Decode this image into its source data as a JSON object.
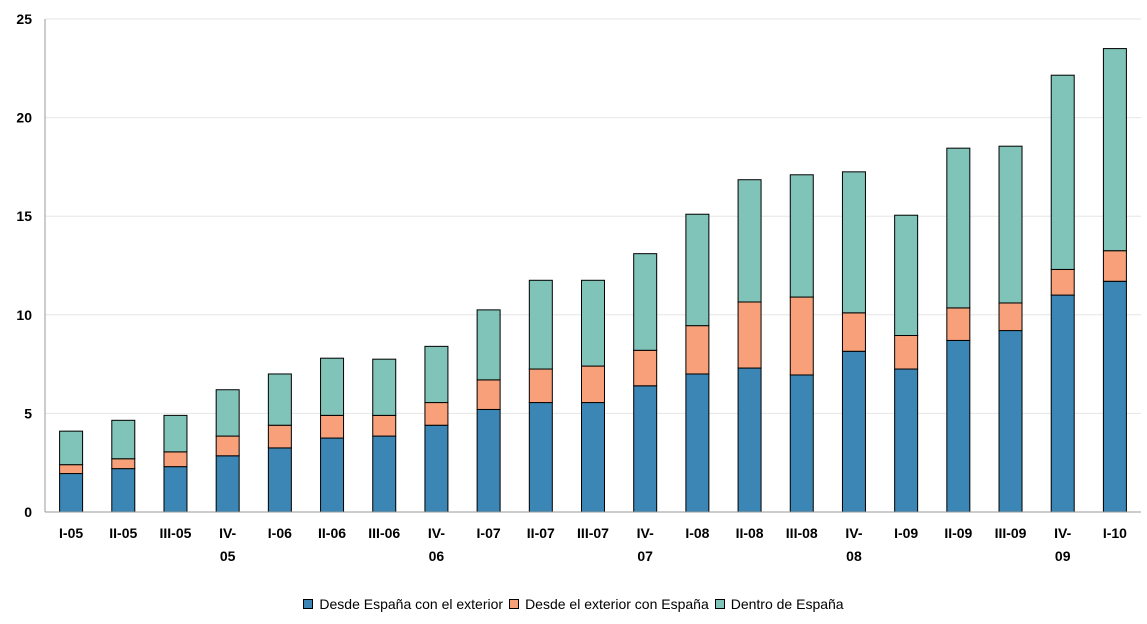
{
  "chart_data": {
    "type": "bar",
    "stacked": true,
    "title": "",
    "xlabel": "",
    "ylabel": "",
    "ylim": [
      0,
      25
    ],
    "yticks": [
      "0",
      "5",
      "10",
      "15",
      "20",
      "25"
    ],
    "grid": true,
    "legend_position": "bottom",
    "categories": [
      "I-05",
      "II-05",
      "III-05",
      "IV-05",
      "I-06",
      "II-06",
      "III-06",
      "IV-06",
      "I-07",
      "II-07",
      "III-07",
      "IV-07",
      "I-08",
      "II-08",
      "III-08",
      "IV-08",
      "I-09",
      "II-09",
      "III-09",
      "IV-09",
      "I-10"
    ],
    "category_lines": [
      [
        "I-05"
      ],
      [
        "II-05"
      ],
      [
        "III-05"
      ],
      [
        "IV-",
        "05"
      ],
      [
        "I-06"
      ],
      [
        "II-06"
      ],
      [
        "III-06"
      ],
      [
        "IV-",
        "06"
      ],
      [
        "I-07"
      ],
      [
        "II-07"
      ],
      [
        "III-07"
      ],
      [
        "IV-",
        "07"
      ],
      [
        "I-08"
      ],
      [
        "II-08"
      ],
      [
        "III-08"
      ],
      [
        "IV-",
        "08"
      ],
      [
        "I-09"
      ],
      [
        "II-09"
      ],
      [
        "III-09"
      ],
      [
        "IV-",
        "09"
      ],
      [
        "I-10"
      ]
    ],
    "series": [
      {
        "name": "Desde España con el exterior",
        "color": "#3B86B4",
        "values": [
          1.95,
          2.2,
          2.3,
          2.85,
          3.25,
          3.75,
          3.85,
          4.4,
          5.2,
          5.55,
          5.55,
          6.4,
          7.0,
          7.3,
          6.95,
          8.15,
          7.25,
          8.7,
          9.2,
          11.0,
          11.7
        ]
      },
      {
        "name": "Desde el exterior con España",
        "color": "#F7A07A",
        "values": [
          0.45,
          0.5,
          0.75,
          1.0,
          1.15,
          1.15,
          1.05,
          1.15,
          1.5,
          1.7,
          1.85,
          1.8,
          2.45,
          3.35,
          3.95,
          1.95,
          1.7,
          1.65,
          1.4,
          1.3,
          1.55
        ]
      },
      {
        "name": "Dentro de España",
        "color": "#80C3B8",
        "values": [
          1.7,
          1.95,
          1.85,
          2.35,
          2.6,
          2.9,
          2.85,
          2.85,
          3.55,
          4.5,
          4.35,
          4.9,
          5.65,
          6.2,
          6.2,
          7.15,
          6.1,
          8.1,
          7.95,
          9.85,
          10.25
        ]
      }
    ]
  }
}
